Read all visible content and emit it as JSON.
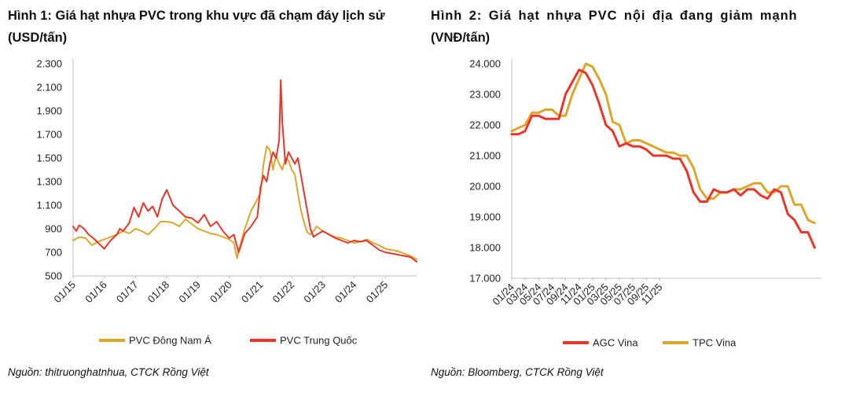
{
  "colors": {
    "gold": "#dba72a",
    "red": "#e8362b",
    "axis": "#bdbdbd"
  },
  "chart_data": [
    {
      "type": "line",
      "title_line1": "Hình 1: Giá hạt nhựa PVC trong khu vực đã chạm đáy lịch sử",
      "title_line2": "(USD/tấn)",
      "source": "Nguồn: thitruonghatnhua, CTCK Rồng Việt",
      "y_ticks": [
        "500",
        "700",
        "900",
        "1.100",
        "1.300",
        "1.500",
        "1.700",
        "1.900",
        "2.100",
        "2.300"
      ],
      "ylim": [
        500,
        2300
      ],
      "x_ticks": [
        "01/15",
        "01/16",
        "01/17",
        "01/18",
        "01/19",
        "01/20",
        "01/21",
        "01/22",
        "01/23",
        "01/24",
        "01/25"
      ],
      "x_range": [
        2015.0,
        2026.0
      ],
      "legend": [
        "PVC Đông Nam Á",
        "PVC Trung Quốc"
      ],
      "series": [
        {
          "name": "PVC Đông Nam Á",
          "color": "#dba72a",
          "x": [
            2015.0,
            2015.2,
            2015.4,
            2015.6,
            2015.8,
            2016.0,
            2016.2,
            2016.4,
            2016.6,
            2016.8,
            2017.0,
            2017.2,
            2017.4,
            2017.6,
            2017.8,
            2018.0,
            2018.2,
            2018.4,
            2018.6,
            2018.8,
            2019.0,
            2019.2,
            2019.4,
            2019.6,
            2019.8,
            2020.0,
            2020.15,
            2020.25,
            2020.35,
            2020.5,
            2020.7,
            2020.9,
            2021.0,
            2021.1,
            2021.2,
            2021.3,
            2021.4,
            2021.5,
            2021.6,
            2021.7,
            2021.8,
            2021.9,
            2022.0,
            2022.1,
            2022.2,
            2022.3,
            2022.4,
            2022.5,
            2022.6,
            2022.7,
            2022.8,
            2023.0,
            2023.2,
            2023.4,
            2023.6,
            2023.8,
            2024.0,
            2024.2,
            2024.4,
            2024.6,
            2024.8,
            2025.0,
            2025.2,
            2025.4,
            2025.6,
            2025.8,
            2026.0
          ],
          "values": [
            800,
            830,
            820,
            760,
            790,
            810,
            830,
            850,
            880,
            860,
            900,
            880,
            850,
            900,
            960,
            960,
            950,
            920,
            980,
            940,
            900,
            880,
            860,
            850,
            830,
            810,
            780,
            650,
            760,
            900,
            1050,
            1150,
            1200,
            1450,
            1600,
            1570,
            1400,
            1520,
            1450,
            1400,
            1500,
            1480,
            1400,
            1360,
            1200,
            1050,
            950,
            870,
            850,
            880,
            920,
            880,
            850,
            830,
            820,
            800,
            780,
            790,
            810,
            780,
            760,
            730,
            720,
            710,
            690,
            670,
            640
          ]
        },
        {
          "name": "PVC Trung Quốc",
          "color": "#e8362b",
          "x": [
            2015.0,
            2015.1,
            2015.2,
            2015.35,
            2015.5,
            2015.65,
            2015.8,
            2016.0,
            2016.2,
            2016.4,
            2016.5,
            2016.6,
            2016.8,
            2016.95,
            2017.1,
            2017.25,
            2017.4,
            2017.55,
            2017.7,
            2017.85,
            2018.0,
            2018.2,
            2018.4,
            2018.6,
            2018.8,
            2019.0,
            2019.2,
            2019.4,
            2019.6,
            2019.8,
            2020.0,
            2020.15,
            2020.3,
            2020.5,
            2020.7,
            2020.9,
            2021.0,
            2021.1,
            2021.2,
            2021.3,
            2021.4,
            2021.5,
            2021.6,
            2021.65,
            2021.7,
            2021.8,
            2021.9,
            2022.0,
            2022.1,
            2022.2,
            2022.3,
            2022.4,
            2022.5,
            2022.6,
            2022.7,
            2022.8,
            2023.0,
            2023.2,
            2023.4,
            2023.6,
            2023.8,
            2024.0,
            2024.2,
            2024.4,
            2024.6,
            2024.8,
            2025.0,
            2025.2,
            2025.4,
            2025.6,
            2025.8,
            2026.0
          ],
          "values": [
            920,
            880,
            930,
            900,
            850,
            820,
            780,
            730,
            800,
            850,
            900,
            880,
            950,
            1080,
            1000,
            1120,
            1050,
            1090,
            1000,
            1150,
            1230,
            1100,
            1050,
            1000,
            990,
            950,
            1020,
            920,
            960,
            880,
            820,
            850,
            700,
            860,
            920,
            1000,
            1250,
            1350,
            1300,
            1450,
            1550,
            1500,
            1650,
            2160,
            1800,
            1450,
            1550,
            1500,
            1450,
            1500,
            1350,
            1200,
            1050,
            900,
            830,
            850,
            880,
            850,
            820,
            800,
            780,
            800,
            790,
            800,
            760,
            720,
            700,
            690,
            680,
            670,
            660,
            620
          ]
        }
      ]
    },
    {
      "type": "line",
      "title_line1": "Hình 2: Giá hạt nhựa PVC nội địa đang giảm mạnh",
      "title_line2": "(VNĐ/tấn)",
      "source": "Nguồn: Bloomberg, CTCK Rồng Việt",
      "y_ticks": [
        "17.000",
        "18.000",
        "19.000",
        "20.000",
        "21.000",
        "22.000",
        "23.000",
        "24.000"
      ],
      "ylim": [
        17000,
        24000
      ],
      "x_ticks": [
        "01/24",
        "03/24",
        "05/24",
        "07/24",
        "09/24",
        "11/24",
        "01/25",
        "03/25",
        "05/25",
        "07/25",
        "09/25",
        "11/25"
      ],
      "x_range": [
        0,
        23
      ],
      "legend": [
        "AGC Vina",
        "TPC Vina"
      ],
      "series": [
        {
          "name": "AGC Vina",
          "color": "#e8362b",
          "x": [
            0,
            0.5,
            1,
            1.5,
            2,
            2.5,
            3,
            3.5,
            4,
            4.5,
            5,
            5.5,
            6,
            6.5,
            7,
            7.5,
            8,
            8.5,
            9,
            9.5,
            10,
            10.5,
            11,
            11.5,
            12,
            12.5,
            13,
            13.5,
            14,
            14.5,
            15,
            15.5,
            16,
            16.5,
            17,
            17.5,
            18,
            18.5,
            19,
            19.5,
            20,
            20.5,
            21,
            21.5,
            22,
            22.5
          ],
          "values": [
            21700,
            21700,
            21800,
            22300,
            22300,
            22200,
            22200,
            22200,
            23000,
            23400,
            23800,
            23700,
            23300,
            22700,
            22000,
            21800,
            21300,
            21400,
            21300,
            21300,
            21200,
            21000,
            21000,
            21000,
            20900,
            20900,
            20500,
            19800,
            19500,
            19500,
            19900,
            19800,
            19800,
            19900,
            19700,
            19900,
            19900,
            19700,
            19600,
            19900,
            19800,
            19100,
            18900,
            18500,
            18500,
            18000
          ]
        },
        {
          "name": "TPC Vina",
          "color": "#dba72a",
          "x": [
            0,
            0.5,
            1,
            1.5,
            2,
            2.5,
            3,
            3.5,
            4,
            4.5,
            5,
            5.5,
            6,
            6.5,
            7,
            7.5,
            8,
            8.5,
            9,
            9.5,
            10,
            10.5,
            11,
            11.5,
            12,
            12.5,
            13,
            13.5,
            14,
            14.5,
            15,
            15.5,
            16,
            16.5,
            17,
            17.5,
            18,
            18.5,
            19,
            19.5,
            20,
            20.5,
            21,
            21.5,
            22,
            22.5
          ],
          "values": [
            21800,
            21900,
            22000,
            22400,
            22400,
            22500,
            22500,
            22300,
            22300,
            23000,
            23500,
            24000,
            23900,
            23500,
            23000,
            22100,
            22000,
            21400,
            21500,
            21500,
            21400,
            21300,
            21200,
            21100,
            21100,
            21000,
            21000,
            20600,
            19900,
            19600,
            19600,
            19800,
            19800,
            19900,
            19900,
            20000,
            20100,
            20100,
            19800,
            19800,
            20000,
            20000,
            19400,
            19400,
            18900,
            18800
          ]
        }
      ]
    }
  ]
}
